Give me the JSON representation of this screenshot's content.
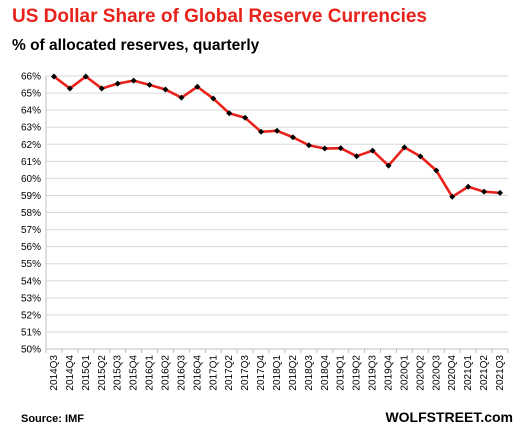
{
  "title": "US Dollar Share of Global  Reserve Currencies",
  "subtitle": "% of allocated reserves, quarterly",
  "source": "Source: IMF",
  "brand": "WOLFSTREET.com",
  "colors": {
    "title": "#e8221b",
    "line": "#e8221b",
    "marker": "#000000",
    "grid": "#d9d9d9",
    "axis": "#bfbfbf"
  },
  "chart_data": {
    "type": "line",
    "title": "US Dollar Share of Global  Reserve Currencies",
    "subtitle": "% of allocated reserves, quarterly",
    "xlabel": "",
    "ylabel": "",
    "ylim": [
      50,
      66
    ],
    "grid": true,
    "legend": "none",
    "y_ticks": [
      "50%",
      "51%",
      "52%",
      "53%",
      "54%",
      "55%",
      "56%",
      "57%",
      "58%",
      "59%",
      "60%",
      "61%",
      "62%",
      "63%",
      "64%",
      "65%",
      "66%"
    ],
    "categories": [
      "2014Q3",
      "2014Q4",
      "2015Q1",
      "2015Q2",
      "2015Q3",
      "2015Q4",
      "2016Q1",
      "2016Q2",
      "2016Q3",
      "2016Q4",
      "2017Q1",
      "2017Q2",
      "2017Q3",
      "2017Q4",
      "2018Q1",
      "2018Q2",
      "2018Q3",
      "2018Q4",
      "2019Q1",
      "2019Q2",
      "2019Q3",
      "2019Q4",
      "2020Q1",
      "2020Q2",
      "2020Q3",
      "2020Q4",
      "2021Q1",
      "2021Q2",
      "2021Q3"
    ],
    "values": [
      65.97,
      65.27,
      65.97,
      65.27,
      65.55,
      65.73,
      65.48,
      65.21,
      64.73,
      65.37,
      64.68,
      63.82,
      63.55,
      62.73,
      62.79,
      62.41,
      61.94,
      61.75,
      61.77,
      61.3,
      61.63,
      60.75,
      61.82,
      61.29,
      60.46,
      58.92,
      59.51,
      59.22,
      59.15
    ]
  }
}
